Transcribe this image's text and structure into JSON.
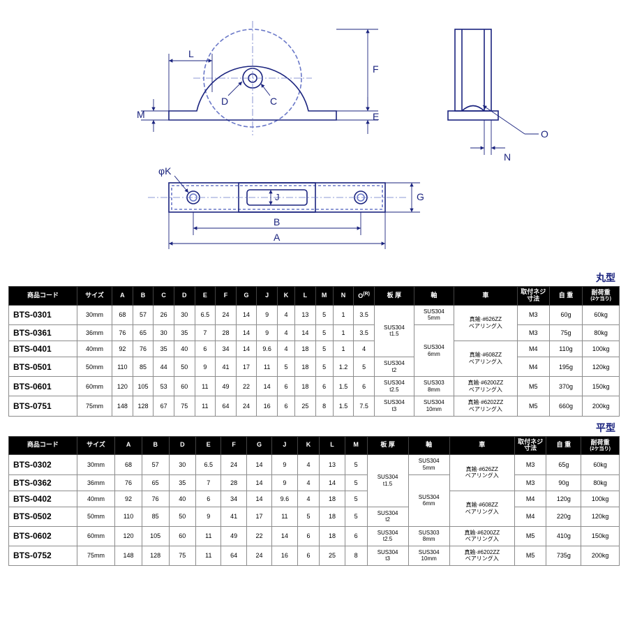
{
  "diagram": {
    "labels": [
      "L",
      "M",
      "D",
      "C",
      "F",
      "E",
      "O",
      "N",
      "φK",
      "J",
      "B",
      "A",
      "G"
    ],
    "stroke": "#1a237e",
    "thin_stroke": "#6a78c8"
  },
  "section1": {
    "label": "丸型",
    "columns": [
      "商品コード",
      "サイズ",
      "A",
      "B",
      "C",
      "D",
      "E",
      "F",
      "G",
      "J",
      "K",
      "L",
      "M",
      "N",
      "O(R)",
      "板 厚",
      "軸",
      "車",
      "取付ネジ寸法",
      "自 重",
      "耐荷重"
    ],
    "col_sub": {
      "20": "(2ケ当り)",
      "14": ""
    },
    "rows": [
      {
        "code": "BTS-0301",
        "size": "30mm",
        "A": "68",
        "B": "57",
        "C": "26",
        "D": "30",
        "E": "6.5",
        "F": "24",
        "G": "14",
        "J": "9",
        "K": "4",
        "L": "13",
        "M": "5",
        "N": "1",
        "O": "3.5",
        "screw": "M3",
        "weight": "60g",
        "load": "60kg"
      },
      {
        "code": "BTS-0361",
        "size": "36mm",
        "A": "76",
        "B": "65",
        "C": "30",
        "D": "35",
        "E": "7",
        "F": "28",
        "G": "14",
        "J": "9",
        "K": "4",
        "L": "14",
        "M": "5",
        "N": "1",
        "O": "3.5",
        "screw": "M3",
        "weight": "75g",
        "load": "80kg"
      },
      {
        "code": "BTS-0401",
        "size": "40mm",
        "A": "92",
        "B": "76",
        "C": "35",
        "D": "40",
        "E": "6",
        "F": "34",
        "G": "14",
        "J": "9.6",
        "K": "4",
        "L": "18",
        "M": "5",
        "N": "1",
        "O": "4",
        "screw": "M4",
        "weight": "110g",
        "load": "100kg"
      },
      {
        "code": "BTS-0501",
        "size": "50mm",
        "A": "110",
        "B": "85",
        "C": "44",
        "D": "50",
        "E": "9",
        "F": "41",
        "G": "17",
        "J": "11",
        "K": "5",
        "L": "18",
        "M": "5",
        "N": "1.2",
        "O": "5",
        "screw": "M4",
        "weight": "195g",
        "load": "120kg"
      },
      {
        "code": "BTS-0601",
        "size": "60mm",
        "A": "120",
        "B": "105",
        "C": "53",
        "D": "60",
        "E": "11",
        "F": "49",
        "G": "22",
        "J": "14",
        "K": "6",
        "L": "18",
        "M": "6",
        "N": "1.5",
        "O": "6",
        "screw": "M5",
        "weight": "370g",
        "load": "150kg"
      },
      {
        "code": "BTS-0751",
        "size": "75mm",
        "A": "148",
        "B": "128",
        "C": "67",
        "D": "75",
        "E": "11",
        "F": "64",
        "G": "24",
        "J": "16",
        "K": "6",
        "L": "25",
        "M": "8",
        "N": "1.5",
        "O": "7.5",
        "screw": "M5",
        "weight": "660g",
        "load": "200kg"
      }
    ],
    "thick": [
      {
        "text": "SUS304\nt1.5",
        "span": 3
      },
      {
        "text": "SUS304\nt2",
        "span": 1
      },
      {
        "text": "SUS304\nt2.5",
        "span": 1
      },
      {
        "text": "SUS304\nt3",
        "span": 1
      }
    ],
    "shaft": [
      {
        "text": "SUS304\n5mm",
        "span": 1
      },
      {
        "text": "SUS304\n6mm",
        "span": 3
      },
      {
        "text": "SUS303\n8mm",
        "span": 1
      },
      {
        "text": "SUS304\n10mm",
        "span": 1
      }
    ],
    "wheel": [
      {
        "text": "真鍮·#626ZZ\nベアリング入",
        "span": 2
      },
      {
        "text": "真鍮·#608ZZ\nベアリング入",
        "span": 2
      },
      {
        "text": "真鍮·#6200ZZ\nベアリング入",
        "span": 1
      },
      {
        "text": "真鍮·#6202ZZ\nベアリング入",
        "span": 1
      }
    ]
  },
  "section2": {
    "label": "平型",
    "columns": [
      "商品コード",
      "サイズ",
      "A",
      "B",
      "D",
      "E",
      "F",
      "G",
      "J",
      "K",
      "L",
      "M",
      "板 厚",
      "軸",
      "車",
      "取付ネジ寸法",
      "自 重",
      "耐荷重"
    ],
    "rows": [
      {
        "code": "BTS-0302",
        "size": "30mm",
        "A": "68",
        "B": "57",
        "D": "30",
        "E": "6.5",
        "F": "24",
        "G": "14",
        "J": "9",
        "K": "4",
        "L": "13",
        "M": "5",
        "screw": "M3",
        "weight": "65g",
        "load": "60kg"
      },
      {
        "code": "BTS-0362",
        "size": "36mm",
        "A": "76",
        "B": "65",
        "D": "35",
        "E": "7",
        "F": "28",
        "G": "14",
        "J": "9",
        "K": "4",
        "L": "14",
        "M": "5",
        "screw": "M3",
        "weight": "90g",
        "load": "80kg"
      },
      {
        "code": "BTS-0402",
        "size": "40mm",
        "A": "92",
        "B": "76",
        "D": "40",
        "E": "6",
        "F": "34",
        "G": "14",
        "J": "9.6",
        "K": "4",
        "L": "18",
        "M": "5",
        "screw": "M4",
        "weight": "120g",
        "load": "100kg"
      },
      {
        "code": "BTS-0502",
        "size": "50mm",
        "A": "110",
        "B": "85",
        "D": "50",
        "E": "9",
        "F": "41",
        "G": "17",
        "J": "11",
        "K": "5",
        "L": "18",
        "M": "5",
        "screw": "M4",
        "weight": "220g",
        "load": "120kg"
      },
      {
        "code": "BTS-0602",
        "size": "60mm",
        "A": "120",
        "B": "105",
        "D": "60",
        "E": "11",
        "F": "49",
        "G": "22",
        "J": "14",
        "K": "6",
        "L": "18",
        "M": "6",
        "screw": "M5",
        "weight": "410g",
        "load": "150kg"
      },
      {
        "code": "BTS-0752",
        "size": "75mm",
        "A": "148",
        "B": "128",
        "D": "75",
        "E": "11",
        "F": "64",
        "G": "24",
        "J": "16",
        "K": "6",
        "L": "25",
        "M": "8",
        "screw": "M5",
        "weight": "735g",
        "load": "200kg"
      }
    ],
    "thick": [
      {
        "text": "SUS304\nt1.5",
        "span": 3
      },
      {
        "text": "SUS304\nt2",
        "span": 1
      },
      {
        "text": "SUS304\nt2.5",
        "span": 1
      },
      {
        "text": "SUS304\nt3",
        "span": 1
      }
    ],
    "shaft": [
      {
        "text": "SUS304\n5mm",
        "span": 1
      },
      {
        "text": "SUS304\n6mm",
        "span": 3
      },
      {
        "text": "SUS303\n8mm",
        "span": 1
      },
      {
        "text": "SUS304\n10mm",
        "span": 1
      }
    ],
    "wheel": [
      {
        "text": "真鍮·#626ZZ\nベアリング入",
        "span": 2
      },
      {
        "text": "真鍮·#608ZZ\nベアリング入",
        "span": 2
      },
      {
        "text": "真鍮·#6200ZZ\nベアリング入",
        "span": 1
      },
      {
        "text": "真鍮·#6202ZZ\nベアリング入",
        "span": 1
      }
    ]
  }
}
